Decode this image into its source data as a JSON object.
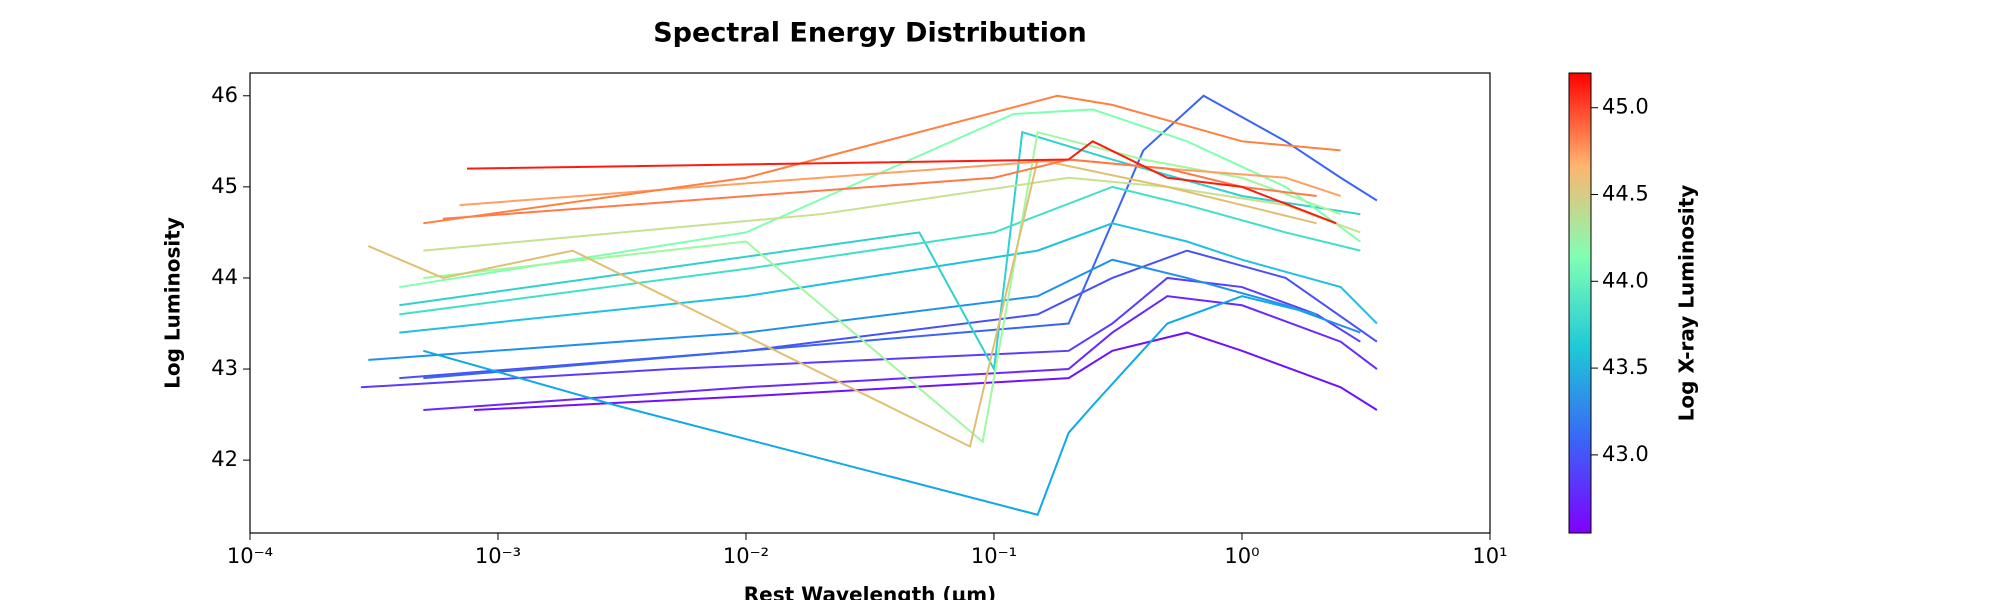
{
  "chart_data": {
    "type": "line",
    "title": "Spectral Energy Distribution",
    "x_label": "Rest Wavelength (μm)",
    "y_label": "Log Luminosity",
    "xscale": "log",
    "xlim": [
      0.0001,
      10
    ],
    "xticks": [
      {
        "value": 0.0001,
        "label": "10⁻⁴"
      },
      {
        "value": 0.001,
        "label": "10⁻³"
      },
      {
        "value": 0.01,
        "label": "10⁻²"
      },
      {
        "value": 0.1,
        "label": "10⁻¹"
      },
      {
        "value": 1,
        "label": "10⁰"
      },
      {
        "value": 10,
        "label": "10¹"
      }
    ],
    "ylim": [
      41.2,
      46.25
    ],
    "yticks": [
      42,
      43,
      44,
      45,
      46
    ],
    "colorbar": {
      "label": "Log X-ray Luminosity",
      "lim": [
        42.55,
        45.2
      ],
      "ticks": [
        {
          "value": 43,
          "label": "43.0"
        },
        {
          "value": 43.5,
          "label": "43.5"
        },
        {
          "value": 44,
          "label": "44.0"
        },
        {
          "value": 44.5,
          "label": "44.5"
        },
        {
          "value": 45,
          "label": "45.0"
        }
      ]
    },
    "series": [
      {
        "color": "#7010fe",
        "x": [
          0.0008,
          0.01,
          0.2,
          0.3,
          0.6,
          1,
          2.5,
          3.5
        ],
        "values": [
          42.55,
          42.7,
          42.9,
          43.2,
          43.4,
          43.2,
          42.8,
          42.55
        ]
      },
      {
        "color": "#6a28fd",
        "x": [
          0.0005,
          0.01,
          0.2,
          0.3,
          0.5,
          1,
          2.5,
          3.5
        ],
        "values": [
          42.55,
          42.8,
          43.0,
          43.4,
          43.8,
          43.7,
          43.3,
          43.0
        ]
      },
      {
        "color": "#5a3cfc",
        "x": [
          0.00028,
          0.005,
          0.2,
          0.3,
          0.5,
          1,
          2,
          3
        ],
        "values": [
          42.8,
          43.0,
          43.2,
          43.5,
          44.0,
          43.9,
          43.6,
          43.3
        ]
      },
      {
        "color": "#4a50f8",
        "x": [
          0.0004,
          0.01,
          0.15,
          0.3,
          0.6,
          1.5,
          3.5
        ],
        "values": [
          42.9,
          43.2,
          43.6,
          44.0,
          44.3,
          44.0,
          43.3
        ]
      },
      {
        "color": "#3a64f6",
        "x": [
          0.0005,
          0.01,
          0.2,
          0.4,
          0.7,
          1.5,
          2.5,
          3.5
        ],
        "values": [
          42.9,
          43.2,
          43.5,
          45.4,
          46.0,
          45.5,
          45.1,
          44.85
        ]
      },
      {
        "color": "#2090f0",
        "x": [
          0.0003,
          0.01,
          0.15,
          0.3,
          0.6,
          1.5,
          3
        ],
        "values": [
          43.1,
          43.4,
          43.8,
          44.2,
          44.0,
          43.7,
          43.4
        ]
      },
      {
        "color": "#10a8e8",
        "x": [
          0.0005,
          0.003,
          0.15,
          0.2,
          0.25,
          0.5,
          1,
          2
        ],
        "values": [
          43.2,
          42.6,
          41.4,
          42.3,
          42.6,
          43.5,
          43.8,
          43.6
        ]
      },
      {
        "color": "#20c0e0",
        "x": [
          0.0004,
          0.01,
          0.15,
          0.3,
          0.6,
          1,
          2.5,
          3.5
        ],
        "values": [
          43.4,
          43.8,
          44.3,
          44.6,
          44.4,
          44.2,
          43.9,
          43.5
        ]
      },
      {
        "color": "#30d0d0",
        "x": [
          0.0004,
          0.05,
          0.1,
          0.13,
          0.3,
          1,
          3
        ],
        "values": [
          43.7,
          44.5,
          43.0,
          45.6,
          45.3,
          44.9,
          44.7
        ]
      },
      {
        "color": "#40e0c8",
        "x": [
          0.0004,
          0.01,
          0.1,
          0.3,
          0.6,
          1.5,
          3
        ],
        "values": [
          43.6,
          44.1,
          44.5,
          45.0,
          44.8,
          44.5,
          44.3
        ]
      },
      {
        "color": "#80ffb0",
        "x": [
          0.0004,
          0.01,
          0.12,
          0.25,
          0.6,
          1.5,
          3
        ],
        "values": [
          43.9,
          44.5,
          45.8,
          45.85,
          45.5,
          45.0,
          44.4
        ]
      },
      {
        "color": "#a0f8a0",
        "x": [
          0.0005,
          0.01,
          0.09,
          0.15,
          0.4,
          1,
          2.5
        ],
        "values": [
          44.0,
          44.4,
          42.2,
          45.6,
          45.3,
          45.1,
          44.7
        ]
      },
      {
        "color": "#c8e090",
        "x": [
          0.0005,
          0.02,
          0.2,
          0.5,
          1.5,
          3
        ],
        "values": [
          44.3,
          44.7,
          45.1,
          45.0,
          44.8,
          44.5
        ]
      },
      {
        "color": "#e0c070",
        "x": [
          0.0003,
          0.0006,
          0.002,
          0.08,
          0.15,
          0.5,
          2
        ],
        "values": [
          44.35,
          44.0,
          44.3,
          42.15,
          45.3,
          45.0,
          44.6
        ]
      },
      {
        "color": "#ffa060",
        "x": [
          0.0007,
          0.02,
          0.2,
          0.5,
          1.5,
          2.5
        ],
        "values": [
          44.8,
          45.1,
          45.3,
          45.2,
          45.1,
          44.9
        ]
      },
      {
        "color": "#ff7a48",
        "x": [
          0.0006,
          0.1,
          0.2,
          0.5,
          1,
          2
        ],
        "values": [
          44.65,
          45.1,
          45.3,
          45.2,
          45.0,
          44.9
        ]
      },
      {
        "color": "#ff8040",
        "x": [
          0.0005,
          0.01,
          0.18,
          0.3,
          1,
          2.5
        ],
        "values": [
          44.6,
          45.1,
          46.0,
          45.9,
          45.5,
          45.4
        ]
      },
      {
        "color": "#ff1a0d",
        "x": [
          0.00075,
          0.2,
          0.25,
          0.5,
          1,
          2.4
        ],
        "values": [
          45.2,
          45.3,
          45.5,
          45.1,
          45.0,
          44.6
        ]
      }
    ]
  }
}
